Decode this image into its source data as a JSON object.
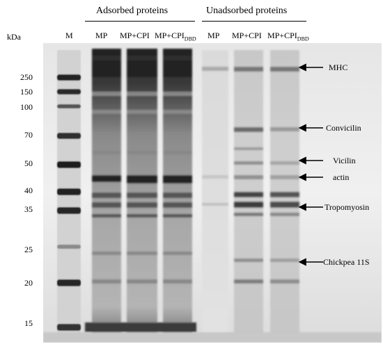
{
  "headers": {
    "adsorbed": "Adsorbed proteins",
    "unadsorbed": "Unadsorbed proteins"
  },
  "lanes": {
    "unit": "kDa",
    "marker": "M",
    "mp1": "MP",
    "mpcpi1": "MP+CPI",
    "mpcpi_dbd1_main": "MP+CPI",
    "mpcpi_dbd1_sub": "DBD",
    "mp2": "MP",
    "mpcpi2": "MP+CPI",
    "mpcpi_dbd2_main": "MP+CPI",
    "mpcpi_dbd2_sub": "DBD"
  },
  "kda_markers": [
    "250",
    "150",
    "100",
    "70",
    "50",
    "40",
    "35",
    "25",
    "20",
    "15"
  ],
  "annotations": {
    "mhc": "MHC",
    "convicilin": "Convicilin",
    "vicilin": "Vicilin",
    "actin": "actin",
    "tropomyosin": "Tropomyosin",
    "chickpea": "Chickpea 11S"
  }
}
